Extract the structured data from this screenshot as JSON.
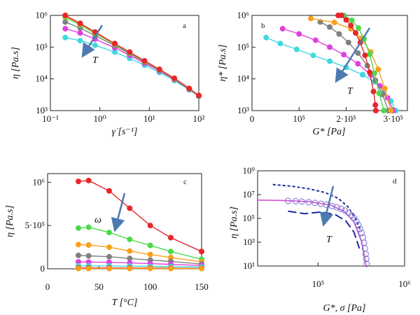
{
  "chart_data": [
    {
      "panel": "a",
      "type": "line",
      "xscale": "log",
      "yscale": "log",
      "xlim": [
        0.1,
        100
      ],
      "ylim": [
        1000,
        1000000
      ],
      "xticks": [
        "10⁻¹",
        "10⁰",
        "10¹",
        "10²"
      ],
      "yticks": [
        "10³",
        "10⁴",
        "10⁵",
        "10⁶"
      ],
      "xlabel": "γ̇ [s⁻¹]",
      "ylabel": "η [Pa.s]",
      "annotation": "T",
      "x": [
        0.2,
        0.4,
        0.8,
        2,
        4,
        8,
        16,
        32,
        64,
        100
      ],
      "series": [
        {
          "color": "#e8262a",
          "values": [
            1000000,
            560000,
            300000,
            130000,
            70000,
            37000,
            20000,
            10500,
            5000,
            3000
          ]
        },
        {
          "color": "#f7a11a",
          "values": [
            950000,
            540000,
            290000,
            128000,
            69000,
            36500,
            19800,
            10400,
            5000,
            3000
          ]
        },
        {
          "color": "#4cd94c",
          "values": [
            870000,
            500000,
            270000,
            122000,
            66000,
            35500,
            19400,
            10200,
            4900,
            3000
          ]
        },
        {
          "color": "#808080",
          "values": [
            620000,
            400000,
            230000,
            112000,
            62000,
            34000,
            18800,
            10000,
            4800,
            2900
          ]
        },
        {
          "color": "#e040e0",
          "values": [
            380000,
            280000,
            180000,
            95000,
            55000,
            31000,
            17800,
            9600,
            4700,
            2900
          ]
        },
        {
          "color": "#3fd9e0",
          "values": [
            200000,
            160000,
            115000,
            70000,
            44000,
            27000,
            16000,
            8900,
            4500,
            2800
          ]
        }
      ]
    },
    {
      "panel": "b",
      "type": "line",
      "xscale": "linear",
      "yscale": "log",
      "xlim": [
        0,
        330000
      ],
      "ylim": [
        1000,
        1000000
      ],
      "xticks": [
        {
          "v": 0,
          "label": "0"
        },
        {
          "v": 100000,
          "label": "10⁵"
        },
        {
          "v": 200000,
          "label": "2·10⁵"
        },
        {
          "v": 300000,
          "label": "3·10⁵"
        }
      ],
      "yticks": [
        "10³",
        "10⁴",
        "10⁵",
        "10⁶"
      ],
      "xlabel": "G* [Pa]",
      "ylabel": "η* [Pa.s]",
      "annotation": "T",
      "series": [
        {
          "color": "#3fd9e0",
          "x": [
            30000,
            60000,
            95000,
            130000,
            165000,
            200000,
            235000,
            260000,
            280000,
            295000,
            305000
          ],
          "y": [
            200000,
            130000,
            85000,
            55000,
            36000,
            23000,
            13500,
            8000,
            4200,
            2000,
            1000
          ]
        },
        {
          "color": "#e040e0",
          "x": [
            65000,
            100000,
            135000,
            165000,
            195000,
            225000,
            252000,
            272000,
            288000,
            300000
          ],
          "y": [
            380000,
            260000,
            165000,
            100000,
            58000,
            30000,
            13500,
            6000,
            2500,
            1000
          ]
        },
        {
          "color": "#808080",
          "x": [
            145000,
            165000,
            185000,
            205000,
            225000,
            245000,
            262000,
            277000,
            290000
          ],
          "y": [
            620000,
            430000,
            260000,
            140000,
            65000,
            26000,
            9000,
            3200,
            1000
          ]
        },
        {
          "color": "#f7a11a",
          "x": [
            125000,
            175000,
            210000,
            232000,
            252000,
            268000,
            282000,
            295000
          ],
          "y": [
            800000,
            600000,
            380000,
            190000,
            70000,
            20000,
            5000,
            1000
          ]
        },
        {
          "color": "#4cd94c",
          "x": [
            195000,
            212000,
            226000,
            238000,
            250000,
            260000,
            270000,
            280000
          ],
          "y": [
            1000000,
            700000,
            400000,
            180000,
            60000,
            15000,
            3500,
            1000
          ]
        },
        {
          "color": "#e8262a",
          "x": [
            183000,
            190000,
            200000,
            210000,
            220000,
            230000,
            240000,
            250000,
            258000,
            262000,
            263000
          ],
          "y": [
            1000000,
            1000000,
            720000,
            480000,
            280000,
            140000,
            55000,
            16000,
            4000,
            1500,
            1000
          ]
        }
      ]
    },
    {
      "panel": "c",
      "type": "line",
      "xscale": "linear",
      "yscale": "linear",
      "xlim": [
        0,
        150
      ],
      "ylim": [
        0,
        1100000
      ],
      "xticks": [
        "0",
        "50",
        "100",
        "150"
      ],
      "yticks": [
        {
          "v": 0,
          "label": "0"
        },
        {
          "v": 500000,
          "label": "5·10⁵"
        },
        {
          "v": 1000000,
          "label": "10⁶"
        }
      ],
      "xlabel": "T [°C]",
      "ylabel": "η [Pa.s]",
      "annotation": "ω",
      "x": [
        30,
        40,
        60,
        80,
        100,
        120,
        150
      ],
      "series": [
        {
          "color": "#e8262a",
          "values": [
            1010000,
            1020000,
            900000,
            700000,
            500000,
            360000,
            200000
          ]
        },
        {
          "color": "#4cd94c",
          "values": [
            470000,
            480000,
            420000,
            340000,
            270000,
            200000,
            110000
          ]
        },
        {
          "color": "#f7a11a",
          "values": [
            280000,
            275000,
            250000,
            205000,
            165000,
            130000,
            80000
          ]
        },
        {
          "color": "#808080",
          "values": [
            155000,
            150000,
            140000,
            120000,
            100000,
            85000,
            55000
          ]
        },
        {
          "color": "#e040e0",
          "values": [
            80000,
            78000,
            75000,
            68000,
            60000,
            52000,
            38000
          ]
        },
        {
          "color": "#3fd9e0",
          "values": [
            35000,
            35000,
            33000,
            31000,
            28000,
            25000,
            20000
          ]
        },
        {
          "color": "#e8262a",
          "values": [
            10000,
            10000,
            10000,
            9000,
            8000,
            7000,
            6000
          ]
        },
        {
          "color": "#f7a11a",
          "values": [
            3000,
            3000,
            3000,
            3000,
            3000,
            3000,
            3000
          ]
        }
      ]
    },
    {
      "panel": "d",
      "type": "line",
      "xscale": "log",
      "yscale": "log",
      "xlim": [
        20000,
        1000000
      ],
      "ylim": [
        10,
        1000000000
      ],
      "xticks": [
        {
          "v": 100000,
          "label": "10⁵"
        },
        {
          "v": 1000000,
          "label": "10⁶"
        }
      ],
      "yticks": [
        "10¹",
        "10³",
        "10⁵",
        "10⁷",
        "10⁹"
      ],
      "xlabel": "G*, σ [Pa]",
      "ylabel": "η [Pa.s]",
      "annotation": "T",
      "series": [
        {
          "style": "short-dash",
          "color": "#1b2aa0",
          "x": [
            30000,
            50000,
            80000,
            120000,
            170000,
            220000,
            270000,
            310000
          ],
          "y": [
            70000000,
            50000000,
            30000000,
            15000000,
            5000000,
            1000000,
            100000,
            10000
          ]
        },
        {
          "style": "long-dash",
          "color": "#1b2aa0",
          "x": [
            45000,
            70000,
            110000,
            160000,
            210000,
            260000,
            300000
          ],
          "y": [
            400000,
            250000,
            350000,
            200000,
            60000,
            7000,
            300
          ]
        },
        {
          "style": "solid",
          "color": "#d64ad6",
          "x": [
            20000,
            40000,
            80000,
            140000,
            200000,
            260000,
            320000,
            360000
          ],
          "y": [
            3500000,
            3200000,
            2500000,
            1300000,
            400000,
            50000,
            1000,
            10
          ]
        },
        {
          "style": "open-circles",
          "color": "#7a6fd0",
          "x": [
            45000,
            55000,
            65000,
            78000,
            92000,
            108000,
            125000,
            145000,
            165000,
            185000,
            205000,
            225000,
            245000,
            262000,
            278000,
            292000,
            305000,
            318000,
            330000,
            340000,
            348000,
            355000,
            360000,
            364000
          ],
          "y": [
            3000000,
            2800000,
            2600000,
            2300000,
            2000000,
            1700000,
            1400000,
            1100000,
            850000,
            630000,
            450000,
            300000,
            180000,
            100000,
            55000,
            28000,
            13000,
            6000,
            2500,
            900,
            300,
            100,
            40,
            15
          ]
        }
      ]
    }
  ],
  "panels": {
    "a": {
      "letter": "a"
    },
    "b": {
      "letter": "b"
    },
    "c": {
      "letter": "c"
    },
    "d": {
      "letter": "d"
    }
  }
}
